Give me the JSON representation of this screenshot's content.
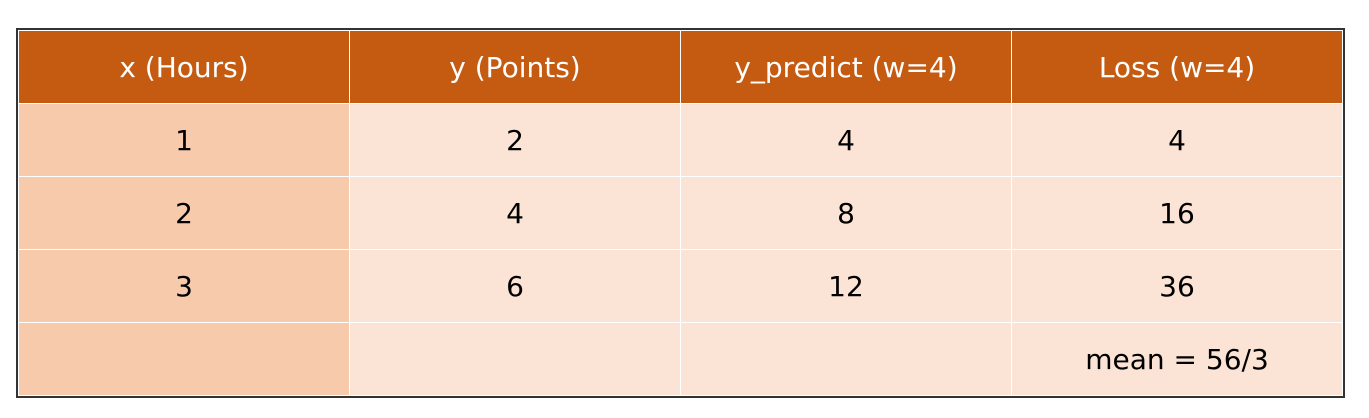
{
  "colors": {
    "header_bg": "#c55a11",
    "first_col_bg": "#f7caac",
    "body_bg": "#fbe4d5",
    "header_text": "#ffffff",
    "cell_text": "#000000"
  },
  "table": {
    "headers": [
      "x (Hours)",
      "y (Points)",
      "y_predict  (w=4)",
      "Loss (w=4)"
    ],
    "rows": [
      [
        "1",
        "2",
        "4",
        "4"
      ],
      [
        "2",
        "4",
        "8",
        "16"
      ],
      [
        "3",
        "6",
        "12",
        "36"
      ],
      [
        "",
        "",
        "",
        "mean = 56/3"
      ]
    ]
  }
}
